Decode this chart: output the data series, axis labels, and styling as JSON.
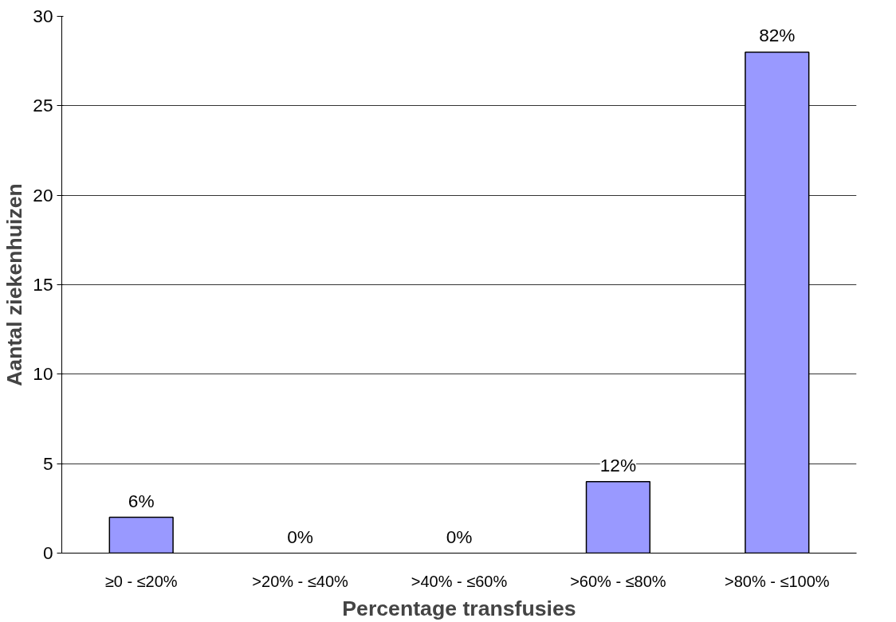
{
  "chart_data": {
    "type": "bar",
    "xlabel": "Percentage transfusies",
    "ylabel": "Aantal ziekenhuizen",
    "categories": [
      "≥0 - ≤20%",
      ">20% - ≤40%",
      ">40% - ≤60%",
      ">60% - ≤80%",
      ">80% - ≤100%"
    ],
    "values": [
      2,
      0,
      0,
      4,
      28
    ],
    "annotations": [
      {
        "text": "6%",
        "x": "≥0 - ≤20%",
        "y": 2
      },
      {
        "text": "0%",
        "x": ">20% - ≤40%",
        "y": 0
      },
      {
        "text": "0%",
        "x": ">40% - ≤60%",
        "y": 0
      },
      {
        "text": "12%",
        "x": ">60% - ≤80%",
        "y": 4
      },
      {
        "text": "82%",
        "x": ">80% - ≤100%",
        "y": 28
      }
    ],
    "color": "#9999ff",
    "ylim": [
      0,
      30
    ],
    "yticks": [
      0,
      5,
      10,
      15,
      20,
      25,
      30
    ],
    "grid": "y"
  }
}
